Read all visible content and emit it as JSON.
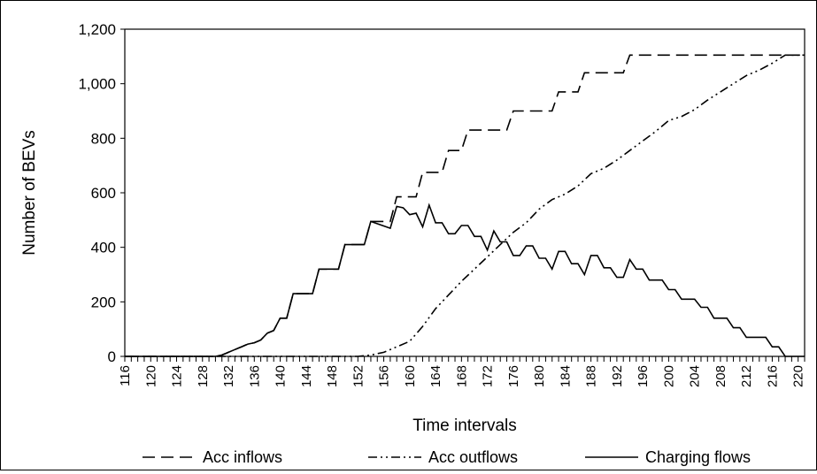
{
  "chart_data": {
    "type": "line",
    "title": "",
    "xlabel": "Time intervals",
    "ylabel": "Number of BEVs",
    "ylim": [
      0,
      1200
    ],
    "xlim": [
      116,
      221
    ],
    "y_ticks": [
      0,
      200,
      400,
      600,
      800,
      1000,
      1200
    ],
    "y_tick_labels": [
      "0",
      "200",
      "400",
      "600",
      "800",
      "1,000",
      "1,200"
    ],
    "x_ticks": [
      116,
      120,
      124,
      128,
      132,
      136,
      140,
      144,
      148,
      152,
      156,
      160,
      164,
      168,
      172,
      176,
      180,
      184,
      188,
      192,
      196,
      200,
      204,
      208,
      212,
      216,
      220
    ],
    "x_tick_labels": [
      "116",
      "120",
      "124",
      "128",
      "132",
      "136",
      "140",
      "144",
      "148",
      "152",
      "156",
      "160",
      "164",
      "168",
      "172",
      "176",
      "180",
      "184",
      "188",
      "192",
      "196",
      "200",
      "204",
      "208",
      "212",
      "216",
      "220"
    ],
    "grid": false,
    "legend_position": "bottom",
    "series": [
      {
        "name": "Acc inflows",
        "style": "dashed",
        "color": "#000000",
        "x": [
          116,
          130,
          131,
          132,
          133,
          134,
          135,
          136,
          137,
          138,
          139,
          140,
          141,
          142,
          145,
          146,
          149,
          150,
          153,
          154,
          157,
          158,
          161,
          162,
          165,
          166,
          168,
          169,
          172,
          173,
          175,
          176,
          179,
          180,
          182,
          183,
          186,
          187,
          190,
          191,
          193,
          194,
          221
        ],
        "values": [
          0,
          0,
          5,
          15,
          25,
          35,
          45,
          50,
          60,
          85,
          95,
          140,
          140,
          230,
          230,
          320,
          320,
          410,
          410,
          495,
          495,
          585,
          585,
          675,
          675,
          755,
          755,
          830,
          830,
          830,
          830,
          900,
          900,
          900,
          900,
          970,
          970,
          1040,
          1040,
          1040,
          1040,
          1105,
          1105
        ]
      },
      {
        "name": "Acc outflows",
        "style": "dash-dot-dot",
        "color": "#000000",
        "x": [
          116,
          152,
          154,
          156,
          158,
          160,
          162,
          164,
          166,
          168,
          170,
          172,
          174,
          176,
          178,
          180,
          182,
          184,
          186,
          188,
          190,
          192,
          194,
          196,
          198,
          200,
          202,
          204,
          206,
          208,
          210,
          212,
          214,
          216,
          218,
          221
        ],
        "values": [
          0,
          0,
          5,
          15,
          35,
          55,
          110,
          175,
          225,
          275,
          320,
          365,
          410,
          455,
          490,
          540,
          575,
          595,
          625,
          670,
          690,
          720,
          755,
          790,
          825,
          865,
          880,
          905,
          940,
          970,
          1000,
          1030,
          1050,
          1075,
          1105,
          1105
        ]
      },
      {
        "name": "Charging flows",
        "style": "solid",
        "color": "#000000",
        "x": [
          116,
          130,
          131,
          132,
          133,
          134,
          135,
          136,
          137,
          138,
          139,
          140,
          141,
          142,
          145,
          146,
          149,
          150,
          153,
          154,
          157,
          158,
          159,
          160,
          161,
          162,
          163,
          164,
          165,
          166,
          167,
          168,
          169,
          170,
          171,
          172,
          173,
          174,
          175,
          176,
          177,
          178,
          179,
          180,
          181,
          182,
          183,
          184,
          185,
          186,
          187,
          188,
          189,
          190,
          191,
          192,
          193,
          194,
          195,
          196,
          197,
          198,
          199,
          200,
          201,
          202,
          203,
          204,
          205,
          206,
          207,
          208,
          209,
          210,
          211,
          212,
          213,
          214,
          215,
          216,
          217,
          218,
          219,
          220,
          221
        ],
        "values": [
          0,
          0,
          5,
          15,
          25,
          35,
          45,
          50,
          60,
          85,
          95,
          140,
          140,
          230,
          230,
          320,
          320,
          410,
          410,
          495,
          470,
          550,
          545,
          520,
          525,
          475,
          555,
          490,
          490,
          450,
          450,
          480,
          480,
          440,
          440,
          390,
          460,
          420,
          420,
          370,
          370,
          405,
          405,
          360,
          360,
          320,
          385,
          385,
          340,
          340,
          300,
          370,
          370,
          325,
          325,
          290,
          290,
          355,
          320,
          320,
          280,
          280,
          280,
          245,
          245,
          210,
          210,
          210,
          180,
          180,
          140,
          140,
          140,
          105,
          105,
          70,
          70,
          70,
          70,
          35,
          35,
          0,
          0,
          0,
          0
        ]
      }
    ]
  }
}
